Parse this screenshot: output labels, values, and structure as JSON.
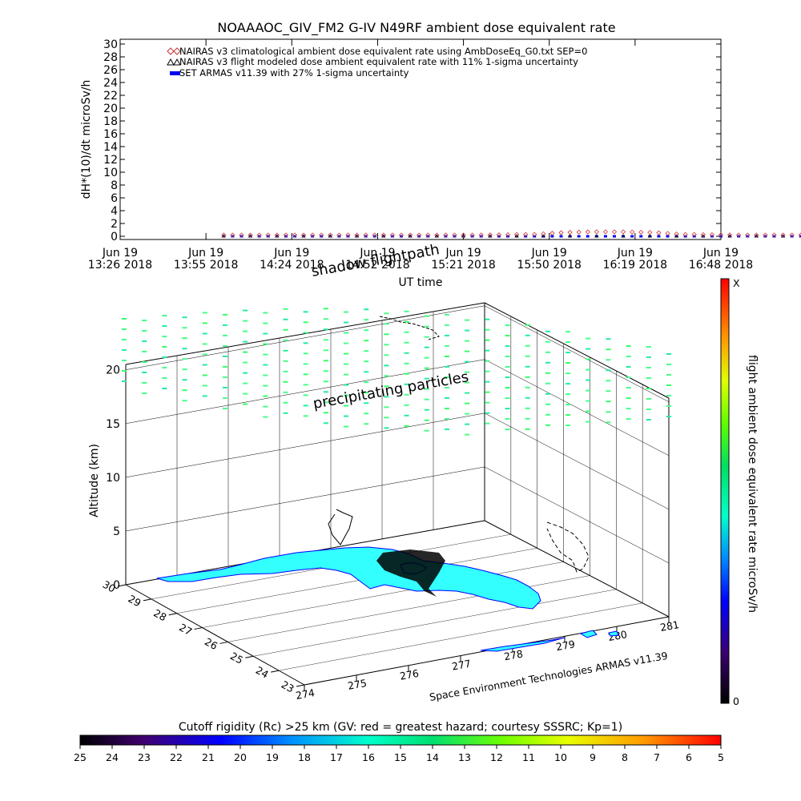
{
  "chart_data": [
    {
      "type": "line",
      "title": "NOAAAOC_GIV_FM2 G-IV    N49RF  ambient dose equivalent rate",
      "ylabel": "dH*(10)/dt microSv/h",
      "xlabel": "UT time",
      "ylim": [
        0,
        30
      ],
      "yticks": [
        "0",
        "2",
        "4",
        "6",
        "8",
        "10",
        "12",
        "14",
        "16",
        "18",
        "20",
        "22",
        "24",
        "26",
        "28",
        "30"
      ],
      "xticks": [
        {
          "date": "Jun 19",
          "time": "13:26 2018"
        },
        {
          "date": "Jun 19",
          "time": "13:55 2018"
        },
        {
          "date": "Jun 19",
          "time": "14:24 2018"
        },
        {
          "date": "Jun 19",
          "time": "14:52 2018"
        },
        {
          "date": "Jun 19",
          "time": "15:21 2018"
        },
        {
          "date": "Jun 19",
          "time": "15:50 2018"
        },
        {
          "date": "Jun 19",
          "time": "16:19 2018"
        },
        {
          "date": "Jun 19",
          "time": "16:48 2018"
        }
      ],
      "legend_position": "top-left",
      "series": [
        {
          "name": "NAIRAS v3 climatological ambient dose equivalent rate using AmbDoseEq_G0.txt SEP=0",
          "marker": "diamond",
          "color": "#cc3333",
          "x_minutes": [
            10,
            20,
            40,
            60,
            90,
            120,
            140,
            150,
            160,
            170,
            180,
            190,
            210,
            240,
            270,
            290,
            300,
            310,
            320,
            330,
            340,
            355
          ],
          "values": [
            0.2,
            0.2,
            0.2,
            0.2,
            0.2,
            0.2,
            0.3,
            0.6,
            0.7,
            0.7,
            0.6,
            0.3,
            0.2,
            0.2,
            0.2,
            0.3,
            0.6,
            0.7,
            0.6,
            0.4,
            0.2,
            0.2
          ]
        },
        {
          "name": "NAIRAS v3 flight modeled dose ambient equivalent rate with 11% 1-sigma uncertainty",
          "marker": "triangle",
          "color": "#000000",
          "x_minutes": [
            10,
            60,
            120,
            180,
            240,
            300,
            355
          ],
          "values": [
            0,
            0,
            0,
            0,
            0,
            0,
            0
          ]
        },
        {
          "name": "SET ARMAS v11.39 with 27% 1-sigma uncertainty",
          "marker": "square",
          "color": "#0000ee",
          "x_minutes": [
            10,
            60,
            120,
            180,
            240,
            300,
            355
          ],
          "values": [
            0,
            0,
            0,
            0,
            0,
            0,
            0
          ]
        }
      ]
    },
    {
      "type": "scatter",
      "zlabel": "Altitude (km)",
      "zticks": [
        "0",
        "5",
        "10",
        "15",
        "20"
      ],
      "lat_ticks": [
        "23",
        "24",
        "25",
        "26",
        "27",
        "28",
        "29",
        "30"
      ],
      "lon_ticks": [
        "274",
        "275",
        "276",
        "277",
        "278",
        "279",
        "280",
        "281"
      ],
      "annotations": [
        "shadow flightpath",
        "precipitating particles"
      ],
      "credit": "Space Environment Technologies ARMAS v11.39"
    }
  ],
  "colorbar_right": {
    "label": "flight ambient dose equivalent rate microSv/h",
    "top_label": "X",
    "bottom_label": "0"
  },
  "colorbar_bottom": {
    "title": "Cutoff rigidity (Rc) >25 km (GV: red = greatest hazard; courtesy SSSRC; Kp=1)",
    "ticks": [
      "25",
      "24",
      "23",
      "22",
      "21",
      "20",
      "19",
      "18",
      "17",
      "16",
      "15",
      "14",
      "13",
      "12",
      "11",
      "10",
      "9",
      "8",
      "7",
      "6",
      "5"
    ]
  }
}
